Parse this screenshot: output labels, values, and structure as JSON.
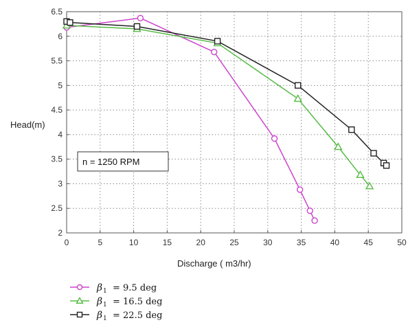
{
  "chart_data": {
    "type": "line",
    "xlabel": "Discharge ( m3/hr)",
    "ylabel": "Head(m)",
    "xlim": [
      0,
      50
    ],
    "ylim": [
      2,
      6.5
    ],
    "x_ticks": [
      0,
      5,
      10,
      15,
      20,
      25,
      30,
      35,
      40,
      45,
      50
    ],
    "y_ticks": [
      2,
      2.5,
      3,
      3.5,
      4,
      4.5,
      5,
      5.5,
      6,
      6.5
    ],
    "x_tick_labels": [
      "0",
      "5",
      "10",
      "15",
      "20",
      "25",
      "30",
      "35",
      "40",
      "45",
      "50"
    ],
    "y_tick_labels": [
      "2",
      "2.5",
      "3",
      "3.5",
      "4",
      "4.5",
      "5",
      "5.5",
      "6",
      "6.5"
    ],
    "grid": true,
    "legend_position": "bottom-left",
    "annotation": "n = 1250 RPM",
    "series": [
      {
        "name": "β1 = 9.5 deg",
        "legend_symbol": "β",
        "legend_subscript": "1",
        "legend_value": "= 9.5 deg",
        "color": "#cc44cc",
        "marker": "circle",
        "x": [
          0,
          11,
          22,
          31,
          34.8,
          36.3,
          37
        ],
        "y": [
          6.18,
          6.37,
          5.68,
          3.92,
          2.88,
          2.45,
          2.25
        ]
      },
      {
        "name": "β1 = 16.5 deg",
        "legend_symbol": "β",
        "legend_subscript": "1",
        "legend_value": "= 16.5 deg",
        "color": "#55bb44",
        "marker": "triangle",
        "x": [
          0,
          10.5,
          22.5,
          34.5,
          40.5,
          43.8,
          45.2
        ],
        "y": [
          6.22,
          6.15,
          5.86,
          4.73,
          3.75,
          3.18,
          2.95
        ]
      },
      {
        "name": "β1 = 22.5 deg",
        "legend_symbol": "β",
        "legend_subscript": "1",
        "legend_value": "=  22.5 deg",
        "color": "#222222",
        "marker": "square",
        "x": [
          0,
          0.5,
          10.5,
          22.5,
          34.5,
          42.5,
          45.8,
          47.3,
          47.7
        ],
        "y": [
          6.3,
          6.28,
          6.2,
          5.9,
          5.0,
          4.1,
          3.62,
          3.42,
          3.37
        ]
      }
    ]
  }
}
